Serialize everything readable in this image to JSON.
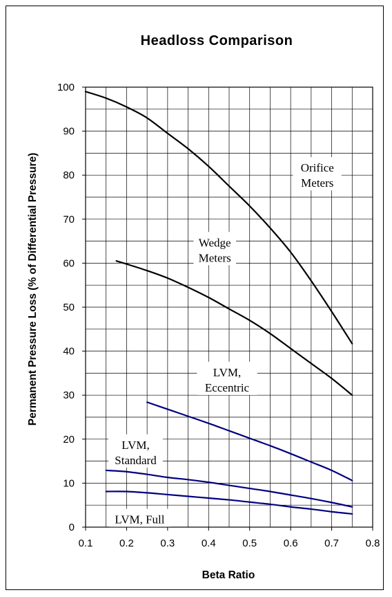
{
  "chart_data": {
    "type": "line",
    "title": "Headloss Comparison",
    "xlabel": "Beta Ratio",
    "ylabel": "Permanent Pressure Loss (% of Differential Pressure)",
    "xlim": [
      0.1,
      0.8
    ],
    "ylim": [
      0,
      100
    ],
    "xticks": [
      "0.1",
      "0.2",
      "0.3",
      "0.4",
      "0.5",
      "0.6",
      "0.7",
      "0.8"
    ],
    "yticks": [
      "0",
      "10",
      "20",
      "30",
      "40",
      "50",
      "60",
      "70",
      "80",
      "90",
      "100"
    ],
    "grid": true,
    "series": [
      {
        "name": "Orifice Meters",
        "color": "#000000",
        "x": [
          0.1,
          0.15,
          0.2,
          0.25,
          0.3,
          0.35,
          0.4,
          0.45,
          0.5,
          0.55,
          0.6,
          0.65,
          0.7,
          0.75
        ],
        "y": [
          99,
          97.5,
          95.5,
          93,
          89.5,
          86,
          82,
          77.5,
          73,
          68,
          62.5,
          56,
          49,
          41.7
        ]
      },
      {
        "name": "Wedge Meters",
        "color": "#000000",
        "x": [
          0.175,
          0.2,
          0.25,
          0.3,
          0.35,
          0.4,
          0.45,
          0.5,
          0.55,
          0.6,
          0.65,
          0.7,
          0.75
        ],
        "y": [
          60.5,
          59.8,
          58.3,
          56.6,
          54.5,
          52.2,
          49.6,
          47,
          44,
          40.6,
          37.2,
          33.8,
          30
        ]
      },
      {
        "name": "LVM, Eccentric",
        "color": "#000080",
        "x": [
          0.25,
          0.3,
          0.35,
          0.4,
          0.45,
          0.5,
          0.55,
          0.6,
          0.65,
          0.7,
          0.75
        ],
        "y": [
          28.4,
          26.8,
          25.2,
          23.6,
          21.9,
          20.2,
          18.5,
          16.7,
          14.8,
          12.9,
          10.6
        ]
      },
      {
        "name": "LVM, Standard",
        "color": "#000080",
        "x": [
          0.15,
          0.2,
          0.25,
          0.3,
          0.35,
          0.4,
          0.45,
          0.5,
          0.55,
          0.6,
          0.65,
          0.7,
          0.75
        ],
        "y": [
          12.9,
          12.6,
          12,
          11.3,
          10.8,
          10.2,
          9.5,
          8.8,
          8.1,
          7.3,
          6.5,
          5.6,
          4.6
        ]
      },
      {
        "name": "LVM, Full",
        "color": "#000080",
        "x": [
          0.15,
          0.2,
          0.25,
          0.3,
          0.35,
          0.4,
          0.45,
          0.5,
          0.55,
          0.6,
          0.65,
          0.7,
          0.75
        ],
        "y": [
          8.1,
          8.1,
          7.8,
          7.4,
          7,
          6.6,
          6.2,
          5.7,
          5.2,
          4.6,
          4.1,
          3.5,
          3
        ]
      }
    ],
    "annotations": [
      {
        "lines": [
          "Orifice",
          "Meters"
        ],
        "x": 0.665,
        "y": 80
      },
      {
        "lines": [
          "Wedge",
          "Meters"
        ],
        "x": 0.415,
        "y": 63
      },
      {
        "lines": [
          "LVM,",
          "Eccentric"
        ],
        "x": 0.445,
        "y": 33.5
      },
      {
        "lines": [
          "LVM,",
          "Standard"
        ],
        "x": 0.222,
        "y": 17
      },
      {
        "lines": [
          "LVM, Full"
        ],
        "x": 0.232,
        "y": 1.8
      }
    ]
  }
}
